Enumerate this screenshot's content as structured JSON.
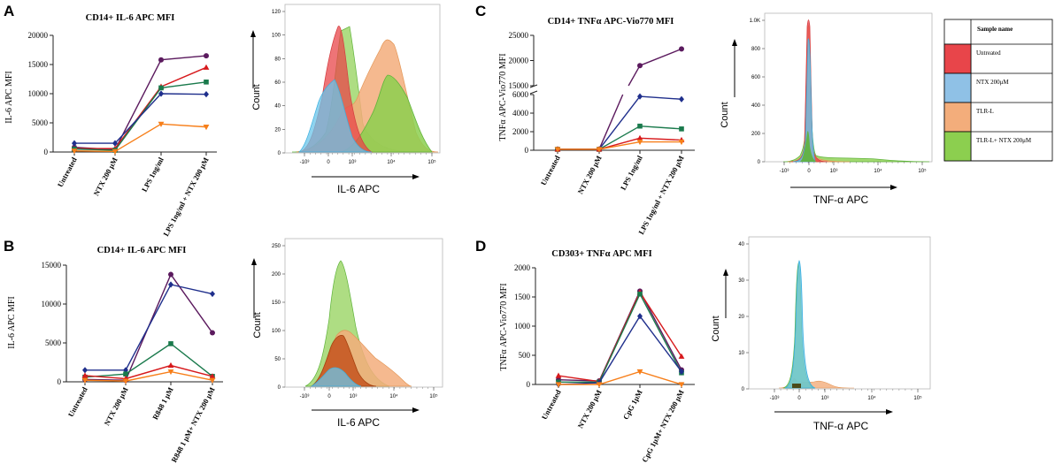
{
  "panels": {
    "A": {
      "label": "A",
      "title": "CD14+ IL-6 APC MFI",
      "ylabel": "IL-6 APC MFI",
      "yticks": [
        "0",
        "5000",
        "10000",
        "15000",
        "20000"
      ],
      "categories": [
        "Untreated",
        "NTX 200 μM",
        "LPS 1ng/ml",
        "LPS 1ng/ml + NTX 200 μM"
      ],
      "hist_xlabel": "IL-6 APC",
      "hist_ylabel": "Count",
      "hist_yticks": [
        "0",
        "20",
        "40",
        "60",
        "80",
        "100",
        "120"
      ]
    },
    "B": {
      "label": "B",
      "title": "CD14+ IL-6 APC MFI",
      "ylabel": "IL-6 APC MFI",
      "yticks": [
        "0",
        "5000",
        "10000",
        "15000"
      ],
      "categories": [
        "Untreated",
        "NTX 200 μM",
        "R848 1 μM",
        "R848 1 μM+ NTX 200 μM"
      ],
      "hist_xlabel": "IL-6 APC",
      "hist_ylabel": "Count",
      "hist_yticks": [
        "0",
        "50",
        "100",
        "150",
        "200",
        "250"
      ]
    },
    "C": {
      "label": "C",
      "title": "CD14+ TNFα APC-Vio770 MFI",
      "ylabel": "TNFα APC-Vio770 MFI",
      "yticks_lower": [
        "0",
        "2000",
        "4000",
        "6000"
      ],
      "yticks_upper": [
        "15000",
        "20000",
        "25000"
      ],
      "categories": [
        "Untreated",
        "NTX 200 μM",
        "LPS 1ng/ml",
        "LPS 1ng/ml + NTX 200 μM"
      ],
      "hist_xlabel": "TNF-α APC",
      "hist_ylabel": "Count",
      "hist_yticks": [
        "0",
        "200",
        "400",
        "600",
        "800",
        "1.0K"
      ]
    },
    "D": {
      "label": "D",
      "title": "CD303+ TNFα APC MFI",
      "ylabel": "TNFα APC-Vio770 MFI",
      "yticks": [
        "0",
        "500",
        "1000",
        "1500",
        "2000"
      ],
      "categories": [
        "Untreated",
        "NTX 200 μM",
        "CpG 1μM",
        "CpG 1μM+ NTX 200 μM"
      ],
      "hist_xlabel": "TNF-α APC",
      "hist_ylabel": "Count",
      "hist_yticks": [
        "0",
        "10",
        "20",
        "30",
        "40"
      ]
    }
  },
  "hist_xticks": [
    "-10³",
    "0",
    "10³",
    "10⁴",
    "10⁵"
  ],
  "legend": {
    "header": "Sample name",
    "entries": [
      {
        "label": "Untreated",
        "color": "#e8454a"
      },
      {
        "label": "NTX 200μM",
        "color": "#8fc1e6"
      },
      {
        "label": "TLR-L",
        "color": "#f3ad7b"
      },
      {
        "label": "TLR-L+ NTX 200μM",
        "color": "#8ccf4f"
      }
    ]
  },
  "donor_colors": [
    "#5b1a5e",
    "#d7191c",
    "#1a7a4c",
    "#1f2f8c",
    "#f77f1a"
  ],
  "chart_data": [
    {
      "panel": "A",
      "type": "line",
      "ylim": [
        0,
        20000
      ],
      "series": [
        {
          "name": "donor-purple",
          "marker": "circle",
          "values": [
            800,
            400,
            15800,
            16500
          ]
        },
        {
          "name": "donor-red",
          "marker": "triangle",
          "values": [
            600,
            600,
            11200,
            14500
          ]
        },
        {
          "name": "donor-green",
          "marker": "square",
          "values": [
            500,
            300,
            11000,
            12000
          ]
        },
        {
          "name": "donor-blue",
          "marker": "diamond",
          "values": [
            1500,
            1500,
            10000,
            9900
          ]
        },
        {
          "name": "donor-orange",
          "marker": "triangle-down",
          "values": [
            200,
            100,
            4800,
            4300
          ]
        }
      ]
    },
    {
      "panel": "B",
      "type": "line",
      "ylim": [
        0,
        15000
      ],
      "series": [
        {
          "name": "donor-purple",
          "marker": "circle",
          "values": [
            300,
            200,
            13800,
            6300
          ]
        },
        {
          "name": "donor-blue",
          "marker": "diamond",
          "values": [
            1500,
            1500,
            12500,
            11300
          ]
        },
        {
          "name": "donor-green",
          "marker": "square",
          "values": [
            600,
            1000,
            4900,
            700
          ]
        },
        {
          "name": "donor-red",
          "marker": "triangle",
          "values": [
            800,
            400,
            2100,
            700
          ]
        },
        {
          "name": "donor-orange",
          "marker": "triangle-down",
          "values": [
            200,
            100,
            1300,
            200
          ]
        }
      ]
    },
    {
      "panel": "C",
      "type": "line",
      "axis_break": [
        6000,
        15000
      ],
      "ylim": [
        0,
        25000
      ],
      "series": [
        {
          "name": "donor-purple",
          "marker": "circle",
          "values": [
            100,
            100,
            19000,
            22300
          ]
        },
        {
          "name": "donor-blue",
          "marker": "diamond",
          "values": [
            100,
            100,
            5800,
            5500
          ]
        },
        {
          "name": "donor-green",
          "marker": "square",
          "values": [
            100,
            100,
            2600,
            2300
          ]
        },
        {
          "name": "donor-red",
          "marker": "triangle",
          "values": [
            100,
            100,
            1300,
            1100
          ]
        },
        {
          "name": "donor-orange",
          "marker": "triangle-down",
          "values": [
            100,
            100,
            900,
            900
          ]
        }
      ]
    },
    {
      "panel": "D",
      "type": "line",
      "ylim": [
        0,
        2000
      ],
      "series": [
        {
          "name": "donor-purple",
          "marker": "circle",
          "values": [
            80,
            60,
            1600,
            250
          ]
        },
        {
          "name": "donor-red",
          "marker": "triangle",
          "values": [
            150,
            50,
            1580,
            480
          ]
        },
        {
          "name": "donor-green",
          "marker": "square",
          "values": [
            40,
            40,
            1550,
            200
          ]
        },
        {
          "name": "donor-blue",
          "marker": "diamond",
          "values": [
            0,
            30,
            1170,
            220
          ]
        },
        {
          "name": "donor-orange",
          "marker": "triangle-down",
          "values": [
            0,
            0,
            220,
            0
          ]
        }
      ]
    }
  ]
}
